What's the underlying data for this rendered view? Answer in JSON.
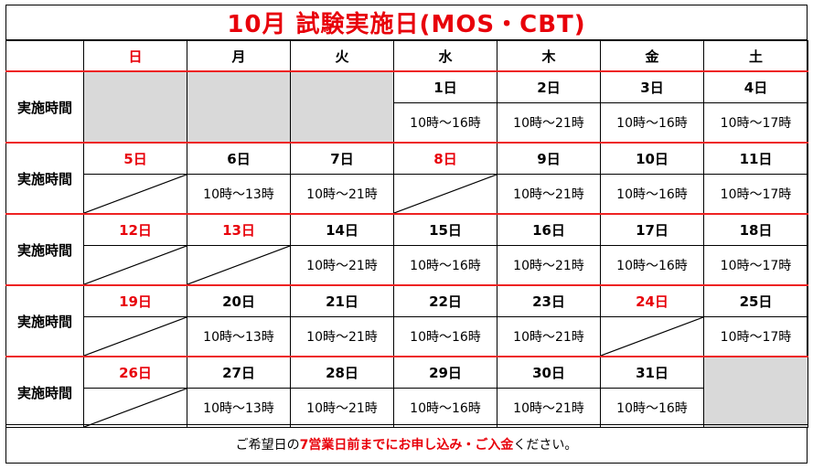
{
  "title": "10月 試験実施日(MOS・CBT)",
  "weekdays": [
    "日",
    "月",
    "火",
    "水",
    "木",
    "金",
    "土"
  ],
  "row_label": "実施時間",
  "weeks": [
    {
      "dates": [
        "",
        "",
        "",
        "1日",
        "2日",
        "3日",
        "4日"
      ],
      "times": [
        "",
        "",
        "",
        "10時～16時",
        "10時～21時",
        "10時～16時",
        "10時～17時"
      ]
    },
    {
      "dates": [
        "5日",
        "6日",
        "7日",
        "8日",
        "9日",
        "10日",
        "11日"
      ],
      "times": [
        "",
        "10時～13時",
        "10時～21時",
        "",
        "10時～21時",
        "10時～16時",
        "10時～17時"
      ]
    },
    {
      "dates": [
        "12日",
        "13日",
        "14日",
        "15日",
        "16日",
        "17日",
        "18日"
      ],
      "times": [
        "",
        "",
        "10時～21時",
        "10時～16時",
        "10時～21時",
        "10時～16時",
        "10時～17時"
      ]
    },
    {
      "dates": [
        "19日",
        "20日",
        "21日",
        "22日",
        "23日",
        "24日",
        "25日"
      ],
      "times": [
        "",
        "10時～13時",
        "10時～21時",
        "10時～16時",
        "10時～21時",
        "",
        "10時～17時"
      ]
    },
    {
      "dates": [
        "26日",
        "27日",
        "28日",
        "29日",
        "30日",
        "31日",
        ""
      ],
      "times": [
        "",
        "10時～13時",
        "10時～21時",
        "10時～16時",
        "10時～21時",
        "10時～16時",
        ""
      ]
    }
  ],
  "footer": {
    "prefix": "ご希望日の",
    "emphasis1": "7営業日前までにお申し込み",
    "middle": "・",
    "emphasis2": "ご入金",
    "suffix": "ください。"
  }
}
